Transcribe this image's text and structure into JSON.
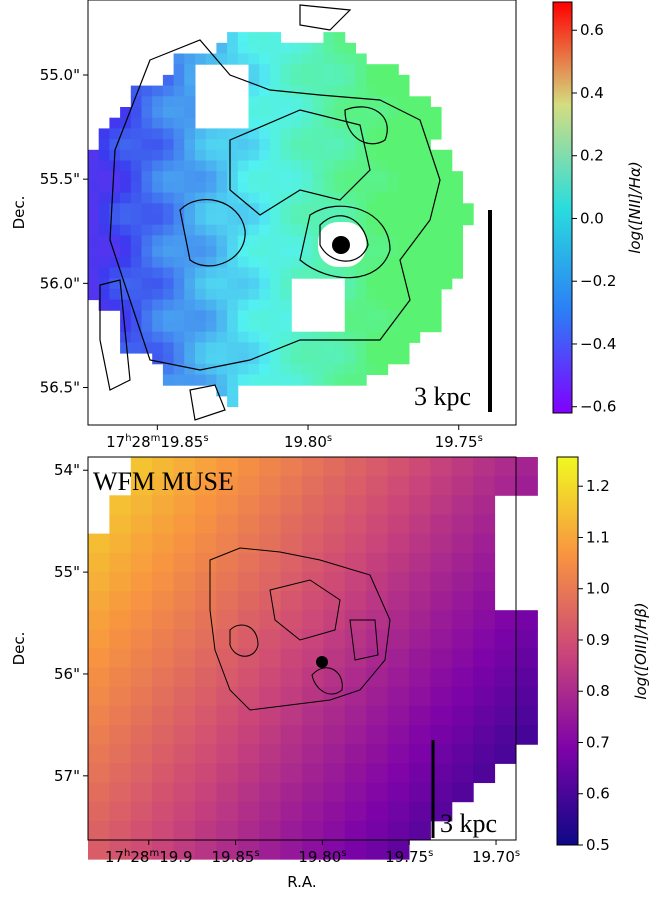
{
  "panels": [
    {
      "ylabel": "Dec.",
      "xlim": [
        19.873,
        19.731
      ],
      "ylim": [
        54.64,
        56.68
      ],
      "xticks": [
        {
          "value": 19.85,
          "label": [
            "17",
            "h",
            "28",
            "m",
            "19.85",
            "s"
          ]
        },
        {
          "value": 19.8,
          "label": [
            "19.80",
            "s"
          ]
        },
        {
          "value": 19.75,
          "label": [
            "19.75",
            "s"
          ]
        }
      ],
      "yticks": [
        {
          "value": 55.0,
          "label": "55.0\""
        },
        {
          "value": 55.5,
          "label": "55.5\""
        },
        {
          "value": 56.0,
          "label": "56.0\""
        },
        {
          "value": 56.5,
          "label": "56.5\""
        }
      ],
      "scalebar": "3 kpc",
      "colorbar": {
        "label": "log([NII]/Hα)",
        "clim": [
          -0.62,
          0.69
        ],
        "ticks": [
          {
            "value": 0.6,
            "label": "0.6"
          },
          {
            "value": 0.4,
            "label": "0.4"
          },
          {
            "value": 0.2,
            "label": "0.2"
          },
          {
            "value": 0,
            "label": "0.0"
          },
          {
            "value": -0.2,
            "label": "−0.2"
          },
          {
            "value": -0.4,
            "label": "−0.4"
          },
          {
            "value": -0.6,
            "label": "−0.6"
          }
        ]
      }
    },
    {
      "ylabel": "Dec.",
      "xlabel": "R.A.",
      "annotation": "WFM MUSE",
      "xlim": [
        19.935,
        19.6885
      ],
      "ylim": [
        53.87,
        57.63
      ],
      "xticks": [
        {
          "value": 19.9,
          "label": [
            "17",
            "h",
            "28",
            "m",
            "19.9"
          ]
        },
        {
          "value": 19.85,
          "label": [
            "19.85",
            "s"
          ]
        },
        {
          "value": 19.8,
          "label": [
            "19.80",
            "s"
          ]
        },
        {
          "value": 19.75,
          "label": [
            "19.75",
            "s"
          ]
        },
        {
          "value": 19.7,
          "label": [
            "19.70",
            "s"
          ]
        }
      ],
      "yticks": [
        {
          "value": 54,
          "label": "54\""
        },
        {
          "value": 55,
          "label": "55\""
        },
        {
          "value": 56,
          "label": "56\""
        },
        {
          "value": 57,
          "label": "57\""
        }
      ],
      "scalebar": "3 kpc",
      "colorbar": {
        "label": "log([OIII]/Hβ)",
        "clim": [
          0.5,
          1.257
        ],
        "ticks": [
          {
            "value": 1.2,
            "label": "1.2"
          },
          {
            "value": 1.1,
            "label": "1.1"
          },
          {
            "value": 1.0,
            "label": "1.0"
          },
          {
            "value": 0.9,
            "label": "0.9"
          },
          {
            "value": 0.8,
            "label": "0.8"
          },
          {
            "value": 0.7,
            "label": "0.7"
          },
          {
            "value": 0.6,
            "label": "0.6"
          },
          {
            "value": 0.5,
            "label": "0.5"
          }
        ]
      }
    }
  ]
}
